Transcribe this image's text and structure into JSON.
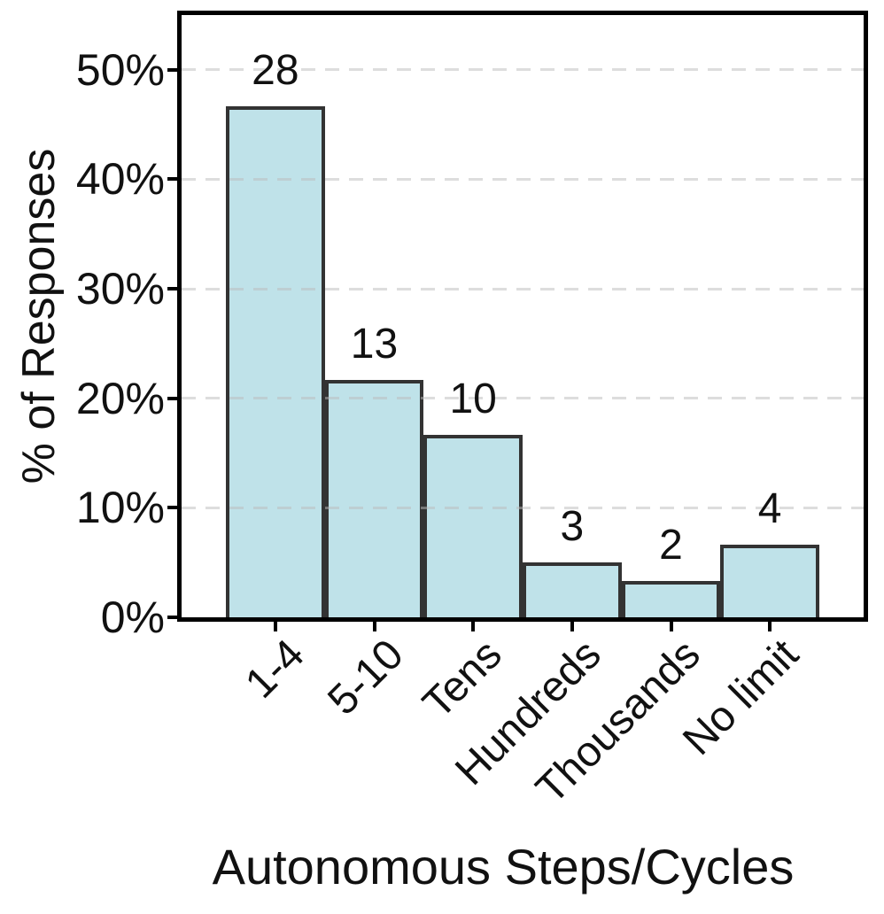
{
  "colors": {
    "background": "#ffffff",
    "bar_fill": "#bfe2e9",
    "bar_edge": "#333333",
    "axis": "#000000",
    "grid": "#cccccc",
    "text": "#111111"
  },
  "chart_data": {
    "type": "bar",
    "title": "",
    "xlabel": "Autonomous Steps/Cycles",
    "ylabel": "% of Responses",
    "categories": [
      "1-4",
      "5-10",
      "Tens",
      "Hundreds",
      "Thousands",
      "No limit"
    ],
    "counts": [
      28,
      13,
      10,
      3,
      2,
      4
    ],
    "values_percent": [
      46.67,
      21.67,
      16.67,
      5.0,
      3.33,
      6.67
    ],
    "bar_labels": [
      "28",
      "13",
      "10",
      "3",
      "2",
      "4"
    ],
    "y_tick_labels": [
      "0%",
      "10%",
      "20%",
      "30%",
      "40%",
      "50%"
    ],
    "y_tick_values": [
      0,
      10,
      20,
      30,
      40,
      50
    ],
    "ylim": [
      0,
      55
    ],
    "grid": "horizontal-dashed",
    "gridlines_at_percent": [
      10,
      20,
      30,
      40,
      50
    ],
    "x_tick_label_rotation_deg": 45,
    "legend": "none"
  }
}
